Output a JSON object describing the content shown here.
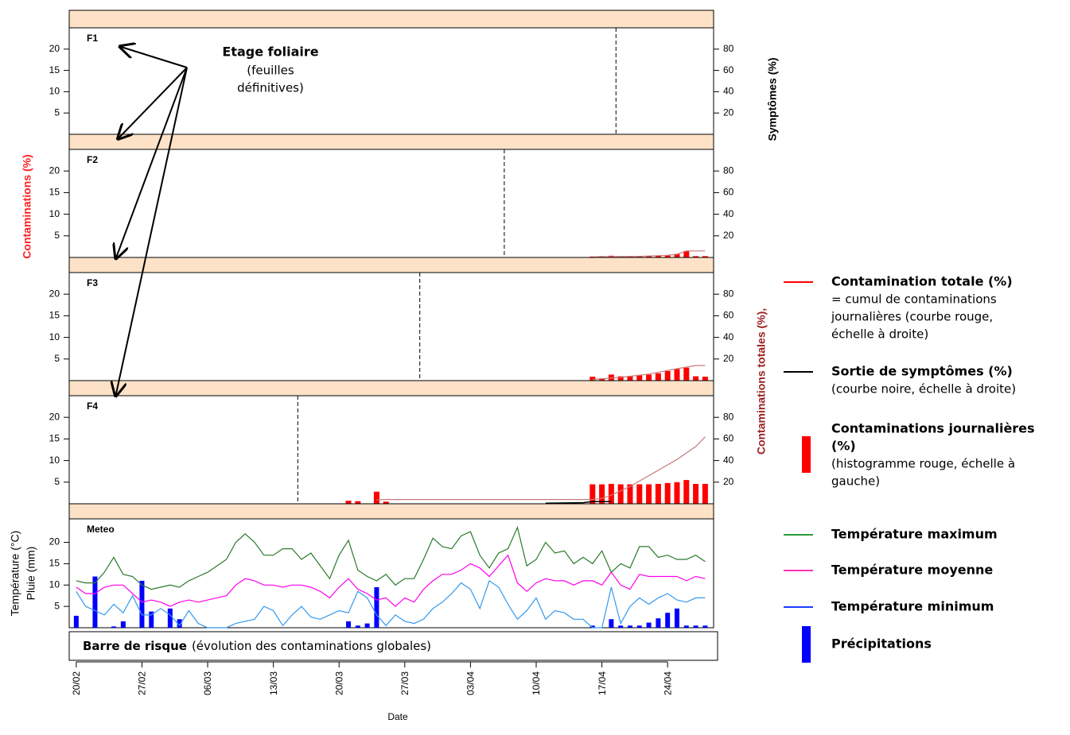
{
  "annotation": {
    "title": "Etage foliaire",
    "lines": [
      "(feuilles",
      "définitives)"
    ]
  },
  "y_label_left": "Contaminations (%)",
  "y_label_right_top": "Symptômes (%)",
  "y_label_right_bottom": "Contaminations totales (%),",
  "risk_bar": {
    "title": "Barre de risque",
    "text": "(évolution des contaminations globales)"
  },
  "legend": [
    {
      "title": [
        "Contamination totale (%)"
      ],
      "text": [
        "= cumul de contaminations",
        "journalières (courbe rouge,",
        "échelle à droite)"
      ],
      "color": "#ff0000",
      "symbol": "line"
    },
    {
      "title": [
        "Sortie de symptômes (%)"
      ],
      "text": [
        "(courbe noire, échelle à droite)"
      ],
      "color": "#000000",
      "symbol": "line"
    },
    {
      "title": [
        "Contaminations journalières",
        "(%)"
      ],
      "text": [
        "(histogramme rouge, échelle à",
        "gauche)"
      ],
      "color": "#ff0000",
      "symbol": "bar"
    },
    {
      "title": [
        "Température maximum"
      ],
      "text": [],
      "color": "#2a9a3a",
      "symbol": "line"
    },
    {
      "title": [
        "Température moyenne"
      ],
      "text": [],
      "color": "#ff2fb4",
      "symbol": "line"
    },
    {
      "title": [
        "Température minimum"
      ],
      "text": [],
      "color": "#1a3cff",
      "symbol": "line"
    },
    {
      "title": [
        "Précipitations"
      ],
      "text": [],
      "color": "#0000ff",
      "symbol": "bar"
    }
  ],
  "chart_data": [
    {
      "type": "bar",
      "title": "F1",
      "xlim": [
        -0.75,
        67.9
      ],
      "ylim": [
        0,
        25
      ],
      "yticks": [
        5,
        10,
        15,
        20
      ],
      "y2lim": [
        0,
        100
      ],
      "y2ticks": [
        20,
        40,
        60,
        80
      ],
      "vline_x": 57.5,
      "daily": {
        "color": "#ff0000",
        "x": [],
        "values": []
      },
      "total": {
        "color": "#c97a7a",
        "x": [],
        "values": []
      }
    },
    {
      "type": "bar",
      "title": "F2",
      "xlim": [
        -0.75,
        67.9
      ],
      "ylim": [
        0,
        25
      ],
      "yticks": [
        5,
        10,
        15,
        20
      ],
      "y2lim": [
        0,
        100
      ],
      "y2ticks": [
        20,
        40,
        60,
        80
      ],
      "vline_x": 45.6,
      "daily": {
        "color": "#ff0000",
        "x": [
          55,
          56,
          57,
          58,
          59,
          60,
          61,
          62,
          63,
          64,
          65,
          66,
          67
        ],
        "values": [
          0.2,
          0.3,
          0.4,
          0.3,
          0.3,
          0.3,
          0.3,
          0.4,
          0.5,
          0.8,
          1.5,
          0.3,
          0.3
        ]
      },
      "total": {
        "color": "#c97a7a",
        "x": [
          55,
          60,
          63,
          64,
          65,
          67
        ],
        "values": [
          0.5,
          1,
          2,
          3,
          6,
          6
        ]
      }
    },
    {
      "type": "bar",
      "title": "F3",
      "xlim": [
        -0.75,
        67.9
      ],
      "ylim": [
        0,
        25
      ],
      "yticks": [
        5,
        10,
        15,
        20
      ],
      "y2lim": [
        0,
        100
      ],
      "y2ticks": [
        20,
        40,
        60,
        80
      ],
      "vline_x": 36.6,
      "daily": {
        "color": "#ff0000",
        "x": [
          55,
          56,
          57,
          58,
          59,
          60,
          61,
          62,
          63,
          64,
          65,
          66,
          67
        ],
        "values": [
          0.9,
          0.5,
          1.4,
          1.0,
          1.1,
          1.2,
          1.4,
          1.7,
          2.2,
          2.7,
          3.0,
          1.0,
          0.9
        ]
      },
      "total": {
        "color": "#c97a7a",
        "x": [
          55,
          58,
          61,
          64,
          66,
          67
        ],
        "values": [
          1,
          3,
          6,
          11,
          14,
          14
        ]
      }
    },
    {
      "type": "bar",
      "title": "F4",
      "xlim": [
        -0.75,
        67.9
      ],
      "ylim": [
        0,
        25
      ],
      "yticks": [
        5,
        10,
        15,
        20
      ],
      "y2lim": [
        0,
        100
      ],
      "y2ticks": [
        20,
        40,
        60,
        80
      ],
      "vline_x": 23.6,
      "daily": {
        "color": "#ff0000",
        "x": [
          29,
          30,
          32,
          33,
          55,
          56,
          57,
          58,
          59,
          60,
          61,
          62,
          63,
          64,
          65,
          66,
          67
        ],
        "values": [
          0.7,
          0.6,
          2.8,
          0.5,
          4.5,
          4.5,
          4.6,
          4.5,
          4.5,
          4.5,
          4.5,
          4.6,
          4.8,
          5.0,
          5.5,
          4.6,
          4.6
        ]
      },
      "total": {
        "color": "#c97a7a",
        "x": [
          32,
          33,
          55,
          56,
          57,
          58,
          59,
          60,
          61,
          62,
          63,
          64,
          65,
          66,
          67
        ],
        "values": [
          3.5,
          4,
          4,
          5,
          8,
          12,
          16,
          21,
          26,
          31,
          36,
          41,
          47,
          53,
          62
        ]
      },
      "symptoms": {
        "color": "#000000",
        "x": [
          50,
          54,
          55,
          57
        ],
        "values": [
          0.5,
          1,
          2,
          2
        ]
      }
    },
    {
      "type": "line",
      "title": "Meteo",
      "ylabel": [
        "Température (°C)",
        "Pluie (mm)"
      ],
      "xlabel": "Date",
      "xlim": [
        -0.75,
        67.9
      ],
      "ylim": [
        0,
        25.5
      ],
      "yticks": [
        5,
        10,
        15,
        20
      ],
      "xticks": [
        {
          "value": 0,
          "label": "20/02"
        },
        {
          "value": 7,
          "label": "27/02"
        },
        {
          "value": 14,
          "label": "06/03"
        },
        {
          "value": 21,
          "label": "13/03"
        },
        {
          "value": 28,
          "label": "20/03"
        },
        {
          "value": 35,
          "label": "27/03"
        },
        {
          "value": 42,
          "label": "03/04"
        },
        {
          "value": 49,
          "label": "10/04"
        },
        {
          "value": 56,
          "label": "17/04"
        },
        {
          "value": 63,
          "label": "24/04"
        }
      ],
      "x": [
        0,
        1,
        2,
        3,
        4,
        5,
        6,
        7,
        8,
        9,
        10,
        11,
        12,
        13,
        14,
        15,
        16,
        17,
        18,
        19,
        20,
        21,
        22,
        23,
        24,
        25,
        26,
        27,
        28,
        29,
        30,
        31,
        32,
        33,
        34,
        35,
        36,
        37,
        38,
        39,
        40,
        41,
        42,
        43,
        44,
        45,
        46,
        47,
        48,
        49,
        50,
        51,
        52,
        53,
        54,
        55,
        56,
        57,
        58,
        59,
        60,
        61,
        62,
        63,
        64,
        65,
        66,
        67
      ],
      "series": [
        {
          "color": "#2a7a2a",
          "values": [
            11,
            10.5,
            10.5,
            13,
            16.5,
            12.5,
            12,
            10,
            9,
            9.5,
            10,
            9.5,
            11,
            12,
            13,
            14.5,
            16,
            20,
            22,
            20,
            17,
            17,
            18.5,
            18.5,
            16,
            17.5,
            14.5,
            11.5,
            17,
            20.5,
            13.5,
            12,
            11,
            12.5,
            10,
            11.5,
            11.5,
            16,
            21,
            19,
            18.5,
            21.5,
            22.5,
            17,
            14,
            17.5,
            18.5,
            23.5,
            14.5,
            16,
            20,
            17.5,
            18,
            15,
            16.5,
            15,
            18,
            13,
            15,
            14,
            19,
            19,
            16.5,
            17,
            16,
            16,
            17,
            15.5
          ]
        },
        {
          "color": "#ff00ee",
          "values": [
            9.5,
            8,
            8,
            9.5,
            10,
            10,
            8,
            6,
            6.5,
            6,
            5,
            6,
            6.5,
            6,
            6.5,
            7,
            7.5,
            10,
            11.5,
            11,
            10,
            10,
            9.5,
            10,
            10,
            9.5,
            8.5,
            7,
            9.5,
            11.5,
            9,
            8,
            6.5,
            7,
            5,
            7,
            6,
            9,
            11,
            12.5,
            12.5,
            13.5,
            15,
            14,
            12,
            14.5,
            17,
            10.5,
            8.5,
            10.5,
            11.5,
            11,
            11,
            10,
            11,
            11,
            10,
            13,
            10,
            9,
            12.5,
            12,
            12,
            12,
            12,
            11,
            12,
            11.5
          ]
        },
        {
          "color": "#3399ee",
          "values": [
            8.5,
            5,
            4,
            3,
            5.5,
            3.5,
            7.5,
            3,
            3,
            4.5,
            3,
            0.5,
            4,
            1,
            0,
            0,
            0,
            1,
            1.5,
            2,
            5,
            4,
            0.5,
            3,
            5,
            2.5,
            2,
            3,
            4,
            3.5,
            8.5,
            7,
            3,
            0.5,
            3,
            1.5,
            1,
            2,
            4.5,
            6,
            8,
            10.5,
            9,
            4.5,
            11,
            9.5,
            5.5,
            2,
            4,
            7,
            2,
            4,
            3.5,
            2,
            2,
            0,
            0,
            9.5,
            1,
            5,
            7,
            5.5,
            7,
            8,
            6.5,
            6,
            7,
            7
          ]
        }
      ],
      "precip": {
        "color": "#0000ff",
        "x": [
          0,
          2,
          4,
          5,
          7,
          8,
          10,
          11,
          29,
          30,
          31,
          32,
          55,
          57,
          58,
          59,
          60,
          61,
          62,
          63,
          64,
          65,
          66,
          67
        ],
        "values": [
          2.8,
          12,
          0.3,
          1.5,
          11,
          3.8,
          4.5,
          2,
          1.5,
          0.5,
          1,
          9.5,
          0.5,
          2,
          0.5,
          0.5,
          0.5,
          1.2,
          2.2,
          3.5,
          4.5,
          0.5,
          0.5,
          0.5
        ]
      }
    }
  ]
}
